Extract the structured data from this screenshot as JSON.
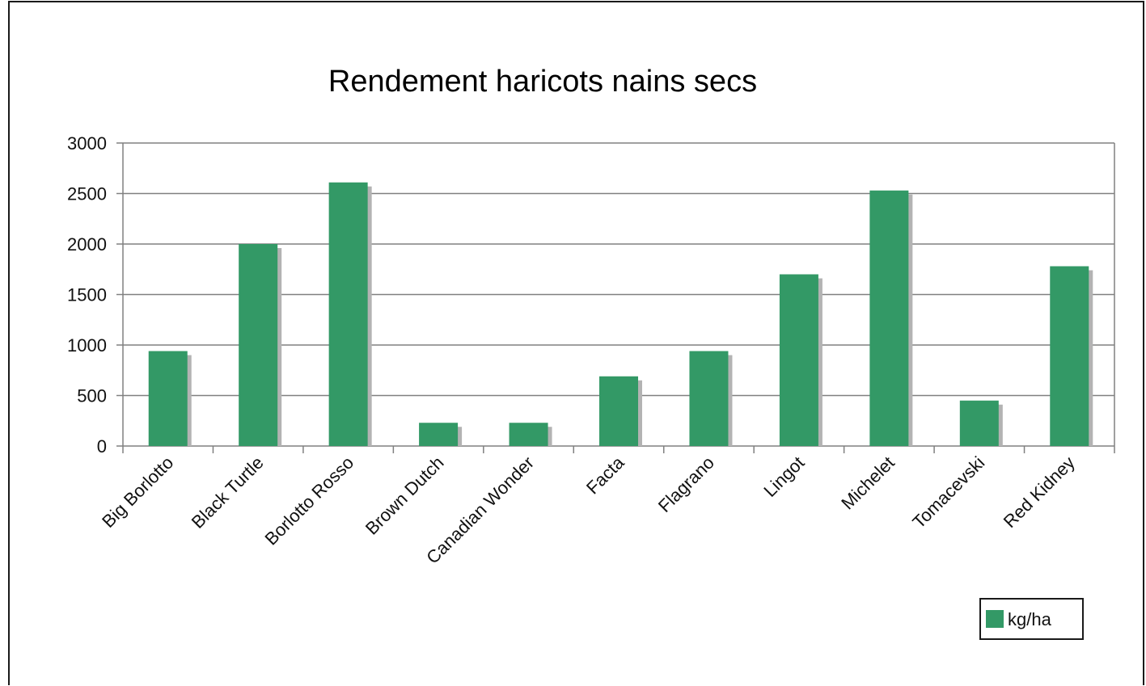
{
  "chart_data": {
    "type": "bar",
    "title": "Rendement haricots nains secs",
    "xlabel": "",
    "ylabel": "",
    "categories": [
      "Big Borlotto",
      "Black Turtle",
      "Borlotto Rosso",
      "Brown Dutch",
      "Canadian Wonder",
      "Facta",
      "Flagrano",
      "Lingot",
      "Michelet",
      "Tomacevski",
      "Red Kidney"
    ],
    "series": [
      {
        "name": "kg/ha",
        "values": [
          940,
          2000,
          2610,
          230,
          230,
          690,
          940,
          1700,
          2530,
          450,
          1780
        ]
      }
    ],
    "ylim": [
      0,
      3000
    ],
    "yticks": [
      0,
      500,
      1000,
      1500,
      2000,
      2500,
      3000
    ],
    "grid": true,
    "legend_position": "bottom-right",
    "colors": {
      "bar": "#339966",
      "bar_shadow": "#b3b3b3",
      "grid": "#808080",
      "axis": "#808080"
    }
  }
}
